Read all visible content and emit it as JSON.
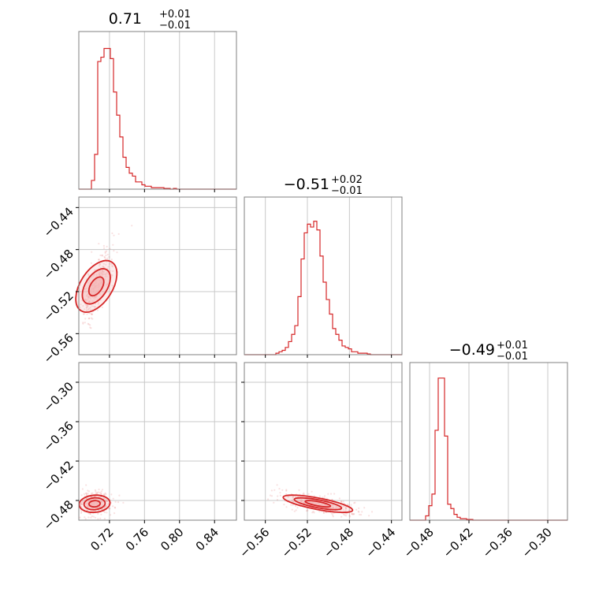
{
  "figure": {
    "titles": [
      {
        "value": "0.71",
        "upper": "+0.01",
        "lower": "−0.01"
      },
      {
        "value": "−0.51",
        "upper": "+0.02",
        "lower": "−0.01"
      },
      {
        "value": "−0.49",
        "upper": "+0.01",
        "lower": "−0.01"
      }
    ]
  },
  "colors": {
    "accent": "#d62728",
    "fill": "#f4b6b6",
    "frame": "#808080",
    "grid": "#c8c8c8"
  },
  "chart_data": {
    "type": "corner",
    "parameters": [
      {
        "range": [
          0.685,
          0.865
        ],
        "ticks": [
          0.72,
          0.76,
          0.8,
          0.84
        ],
        "tick_labels": [
          "0.72",
          "0.76",
          "0.80",
          "0.84"
        ]
      },
      {
        "range": [
          -0.58,
          -0.43
        ],
        "ticks": [
          -0.56,
          -0.52,
          -0.48,
          -0.44
        ],
        "tick_labels": [
          "−0.56",
          "−0.52",
          "−0.48",
          "−0.44"
        ]
      },
      {
        "range": [
          -0.51,
          -0.27
        ],
        "ticks": [
          -0.48,
          -0.42,
          -0.36,
          -0.3
        ],
        "tick_labels": [
          "−0.48",
          "−0.42",
          "−0.36",
          "−0.30"
        ]
      }
    ],
    "histograms": [
      {
        "bins": [
          0.685,
          0.865
        ],
        "heights": [
          0,
          0,
          0,
          0,
          0.06,
          0.24,
          0.88,
          0.91,
          0.97,
          0.97,
          0.9,
          0.67,
          0.51,
          0.36,
          0.22,
          0.15,
          0.11,
          0.09,
          0.05,
          0.05,
          0.03,
          0.02,
          0.02,
          0.01,
          0.01,
          0.01,
          0.01,
          0.005,
          0.005,
          0,
          0.005,
          0,
          0,
          0,
          0,
          0,
          0,
          0,
          0,
          0,
          0,
          0,
          0,
          0,
          0,
          0,
          0,
          0,
          0,
          0
        ]
      },
      {
        "bins": [
          -0.58,
          -0.43
        ],
        "heights": [
          0,
          0,
          0,
          0,
          0,
          0,
          0,
          0,
          0,
          0,
          0.01,
          0.02,
          0.03,
          0.05,
          0.09,
          0.14,
          0.2,
          0.4,
          0.66,
          0.84,
          0.9,
          0.88,
          0.92,
          0.86,
          0.68,
          0.5,
          0.38,
          0.28,
          0.18,
          0.14,
          0.1,
          0.06,
          0.05,
          0.04,
          0.02,
          0.02,
          0.01,
          0.01,
          0.01,
          0.005,
          0,
          0,
          0,
          0,
          0,
          0,
          0,
          0,
          0,
          0
        ]
      },
      {
        "bins": [
          -0.51,
          -0.27
        ],
        "heights": [
          0,
          0,
          0,
          0,
          0,
          0.03,
          0.1,
          0.18,
          0.62,
          0.98,
          0.98,
          0.58,
          0.11,
          0.08,
          0.04,
          0.02,
          0.01,
          0.01,
          0.005,
          0.005,
          0,
          0,
          0,
          0,
          0,
          0,
          0,
          0,
          0,
          0,
          0,
          0,
          0,
          0,
          0,
          0,
          0,
          0,
          0,
          0,
          0,
          0,
          0,
          0,
          0,
          0,
          0,
          0,
          0,
          0
        ]
      }
    ],
    "pairs": [
      {
        "x_param": 0,
        "y_param": 1,
        "center": [
          0.705,
          -0.515
        ],
        "spread": [
          0.008,
          0.014
        ],
        "correlation": 0.75
      },
      {
        "x_param": 0,
        "y_param": 2,
        "center": [
          0.703,
          -0.485
        ],
        "spread": [
          0.008,
          0.008
        ],
        "correlation": 0.1
      },
      {
        "x_param": 1,
        "y_param": 2,
        "center": [
          -0.51,
          -0.485
        ],
        "spread": [
          0.015,
          0.007
        ],
        "correlation": -0.65
      }
    ]
  }
}
